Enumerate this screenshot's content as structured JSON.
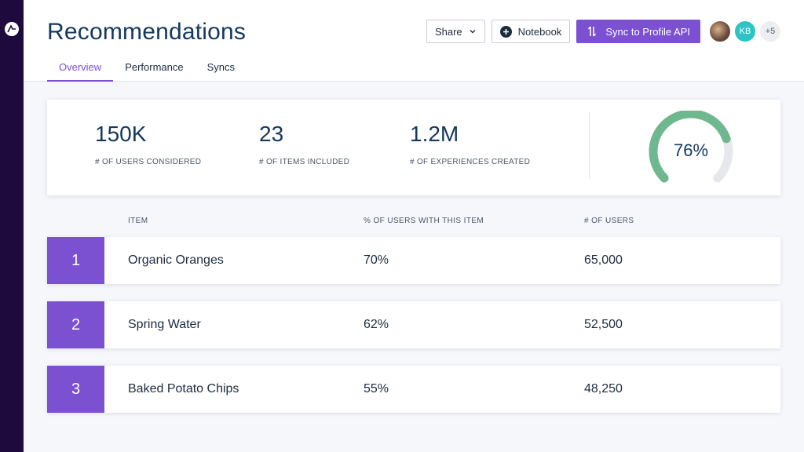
{
  "page": {
    "title": "Recommendations"
  },
  "tabs": [
    {
      "label": "Overview"
    },
    {
      "label": "Performance"
    },
    {
      "label": "Syncs"
    }
  ],
  "actions": {
    "share_label": "Share",
    "notebook_label": "Notebook",
    "sync_label": "Sync to Profile API"
  },
  "avatars": {
    "initials": "KB",
    "more_count": "+5"
  },
  "stats": [
    {
      "value": "150K",
      "label": "# OF USERS CONSIDERED"
    },
    {
      "value": "23",
      "label": "# OF ITEMS INCLUDED"
    },
    {
      "value": "1.2M",
      "label": "# OF EXPERIENCES CREATED"
    }
  ],
  "gauge": {
    "text": "76%",
    "fraction": 0.76,
    "fill_color": "#6fb88f",
    "track_color": "#e6e8ec"
  },
  "table": {
    "headers": {
      "item": "ITEM",
      "pct": "% OF USERS WITH THIS ITEM",
      "users": "# OF USERS"
    },
    "rows": [
      {
        "rank": "1",
        "item": "Organic Oranges",
        "pct": "70%",
        "users": "65,000"
      },
      {
        "rank": "2",
        "item": "Spring Water",
        "pct": "62%",
        "users": "52,500"
      },
      {
        "rank": "3",
        "item": "Baked Potato Chips",
        "pct": "55%",
        "users": "48,250"
      }
    ]
  },
  "colors": {
    "accent": "#7b50d1",
    "sidebar": "#1e0a3c",
    "title": "#13385e"
  }
}
